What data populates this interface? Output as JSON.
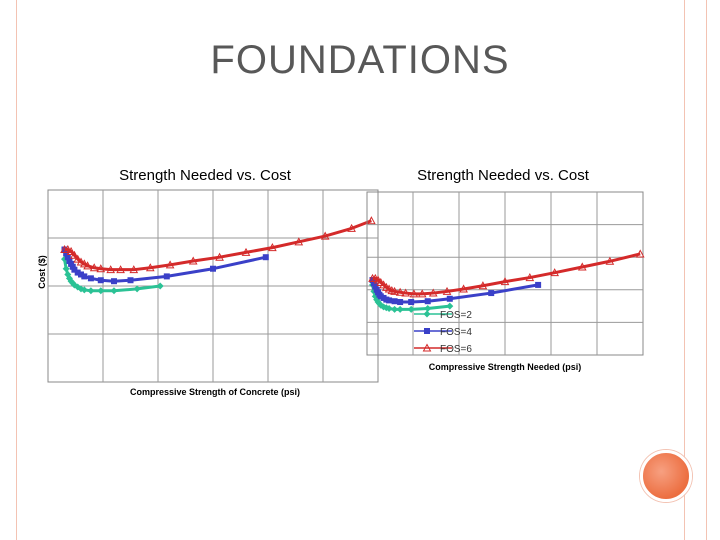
{
  "slide": {
    "title": "FOUNDATIONS"
  },
  "colors": {
    "frame": "#f3c3b3",
    "accent_circle": "#ec6e40",
    "FOS=2": "#2bc295",
    "FOS=4": "#3a40c8",
    "FOS=6": "#d42a2a"
  },
  "chart_data": [
    {
      "type": "line",
      "title": "Strength Needed vs. Cost",
      "xlabel": "Compressive Strength of Concrete (psi)",
      "ylabel": "Cost ($)",
      "xlim": [
        0,
        10
      ],
      "ylim": [
        0,
        10
      ],
      "grid": true,
      "legend": "none",
      "series": [
        {
          "name": "FOS=2",
          "x": [
            0.5,
            0.55,
            0.6,
            0.65,
            0.7,
            0.75,
            0.8,
            0.9,
            1.0,
            1.1,
            1.3,
            1.6,
            2.0,
            2.7,
            3.4
          ],
          "y": [
            6.4,
            5.9,
            5.6,
            5.4,
            5.25,
            5.15,
            5.05,
            4.95,
            4.85,
            4.8,
            4.75,
            4.75,
            4.75,
            4.85,
            5.0
          ]
        },
        {
          "name": "FOS=4",
          "x": [
            0.5,
            0.55,
            0.6,
            0.65,
            0.7,
            0.75,
            0.8,
            0.9,
            1.0,
            1.1,
            1.3,
            1.6,
            2.0,
            2.5,
            3.6,
            5.0,
            6.6
          ],
          "y": [
            6.9,
            6.7,
            6.5,
            6.3,
            6.15,
            6.0,
            5.85,
            5.7,
            5.6,
            5.5,
            5.4,
            5.3,
            5.25,
            5.3,
            5.5,
            5.9,
            6.5
          ]
        },
        {
          "name": "FOS=6",
          "x": [
            0.5,
            0.6,
            0.7,
            0.8,
            0.9,
            1.0,
            1.1,
            1.2,
            1.4,
            1.6,
            1.9,
            2.2,
            2.6,
            3.1,
            3.7,
            4.4,
            5.2,
            6.0,
            6.8,
            7.6,
            8.4,
            9.2,
            9.8
          ],
          "y": [
            6.9,
            6.9,
            6.8,
            6.6,
            6.4,
            6.25,
            6.15,
            6.05,
            5.95,
            5.9,
            5.85,
            5.85,
            5.85,
            5.95,
            6.1,
            6.3,
            6.5,
            6.75,
            7.0,
            7.3,
            7.6,
            8.0,
            8.4
          ]
        }
      ]
    },
    {
      "type": "line",
      "title": "Strength Needed vs. Cost",
      "xlabel": "Compressive Strength Needed (psi)",
      "ylabel": "",
      "xlim": [
        0,
        10
      ],
      "ylim": [
        0,
        10
      ],
      "grid": true,
      "legend": "lower-center",
      "legend_entries": [
        "FOS=2",
        "FOS=4",
        "FOS=6"
      ],
      "series": [
        {
          "name": "FOS=2",
          "x": [
            0.2,
            0.25,
            0.3,
            0.35,
            0.4,
            0.45,
            0.5,
            0.6,
            0.7,
            0.8,
            1.0,
            1.2,
            1.6,
            2.2,
            3.0
          ],
          "y": [
            4.3,
            3.9,
            3.6,
            3.4,
            3.25,
            3.15,
            3.05,
            2.95,
            2.9,
            2.85,
            2.8,
            2.8,
            2.8,
            2.85,
            3.0
          ]
        },
        {
          "name": "FOS=4",
          "x": [
            0.2,
            0.25,
            0.3,
            0.35,
            0.4,
            0.45,
            0.5,
            0.6,
            0.7,
            0.8,
            1.0,
            1.2,
            1.6,
            2.2,
            3.0,
            4.5,
            6.2
          ],
          "y": [
            4.6,
            4.4,
            4.2,
            4.0,
            3.85,
            3.7,
            3.6,
            3.5,
            3.4,
            3.35,
            3.3,
            3.25,
            3.25,
            3.3,
            3.45,
            3.8,
            4.3
          ]
        },
        {
          "name": "FOS=6",
          "x": [
            0.2,
            0.3,
            0.4,
            0.5,
            0.6,
            0.7,
            0.8,
            0.9,
            1.0,
            1.2,
            1.4,
            1.7,
            2.0,
            2.4,
            2.9,
            3.5,
            4.2,
            5.0,
            5.9,
            6.8,
            7.8,
            8.8,
            9.9
          ],
          "y": [
            4.7,
            4.7,
            4.6,
            4.45,
            4.3,
            4.15,
            4.05,
            3.95,
            3.9,
            3.85,
            3.8,
            3.75,
            3.75,
            3.8,
            3.9,
            4.05,
            4.25,
            4.5,
            4.75,
            5.05,
            5.4,
            5.75,
            6.2
          ]
        }
      ]
    }
  ]
}
